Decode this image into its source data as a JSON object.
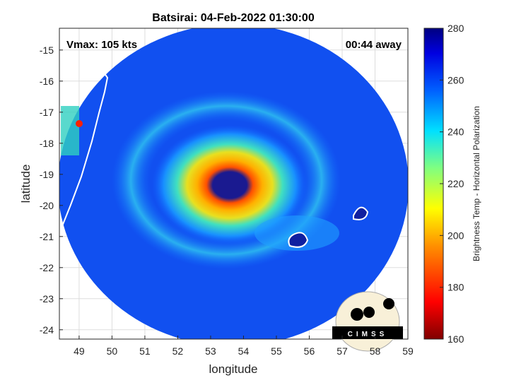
{
  "chart_data": {
    "type": "heatmap",
    "title": "Batsirai: 04-Feb-2022 01:30:00",
    "xlabel": "longitude",
    "ylabel": "latitude",
    "xlim": [
      48.4,
      59
    ],
    "ylim": [
      -24.3,
      -14.3
    ],
    "xticks": [
      "49",
      "50",
      "51",
      "52",
      "53",
      "54",
      "55",
      "56",
      "57",
      "58",
      "59"
    ],
    "yticks": [
      "-15",
      "-16",
      "-17",
      "-18",
      "-19",
      "-20",
      "-21",
      "-22",
      "-23",
      "-24"
    ],
    "grid": true,
    "colorbar": {
      "label": "Brightness Temp - Horizontal Polarization",
      "range": [
        160,
        280
      ],
      "ticks": [
        "160",
        "180",
        "200",
        "220",
        "240",
        "260",
        "280"
      ]
    },
    "annotations": {
      "vmax": "Vmax: 105 kts",
      "time_away": "00:44 away"
    },
    "eye_center": {
      "lon": 53.6,
      "lat": -19.4
    },
    "logo": "CIMSS"
  }
}
